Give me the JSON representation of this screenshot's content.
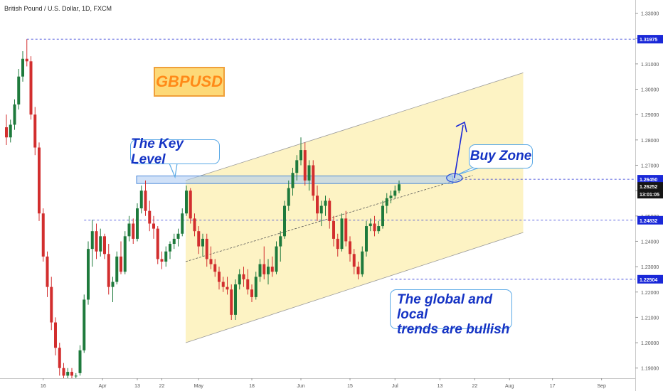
{
  "symbol_title": "British Pound / U.S. Dollar, 1D, FXCM",
  "instrument_badge": "GBPUSD",
  "annotations": {
    "key_level": "The Key Level",
    "buy_zone": "Buy Zone",
    "trend_note_line1": "The global and local",
    "trend_note_line2": "trends are bullish"
  },
  "colors": {
    "bull_candle": "#1e7a3c",
    "bear_candle": "#d22e2e",
    "channel_fill": "#fdf3c4",
    "level_line": "#2a36d6",
    "callout_text": "#1533c4",
    "price_tag_blue": "#1a28d8",
    "price_tag_dark": "#151515"
  },
  "chart_data": {
    "type": "candlestick",
    "title": "British Pound / U.S. Dollar, 1D, FXCM",
    "ylim": [
      1.186,
      1.3352
    ],
    "y_ticks": [
      "1.33000",
      "1.32000",
      "1.31000",
      "1.30000",
      "1.29000",
      "1.28000",
      "1.27000",
      "1.26000",
      "1.25000",
      "1.24000",
      "1.23000",
      "1.22000",
      "1.21000",
      "1.20000",
      "1.19000"
    ],
    "x_ticks": [
      "16",
      "Apr",
      "13",
      "22",
      "May",
      "18",
      "Jun",
      "15",
      "Jul",
      "13",
      "22",
      "Aug",
      "17",
      "Sep"
    ],
    "horizontal_levels": [
      1.31975,
      1.2645,
      1.24832,
      1.22504
    ],
    "price_labels": [
      {
        "value": "1.31975",
        "style": "blue"
      },
      {
        "value": "1.26450",
        "style": "blue"
      },
      {
        "value": "1.26252",
        "style": "dark"
      },
      {
        "value": "13:01:05",
        "style": "dark"
      },
      {
        "value": "1.24832",
        "style": "blue"
      },
      {
        "value": "1.22504",
        "style": "blue"
      }
    ],
    "ohlc": [
      [
        1.285,
        1.29,
        1.278,
        1.281
      ],
      [
        1.281,
        1.288,
        1.279,
        1.286
      ],
      [
        1.286,
        1.296,
        1.284,
        1.294
      ],
      [
        1.294,
        1.308,
        1.292,
        1.305
      ],
      [
        1.305,
        1.315,
        1.303,
        1.312
      ],
      [
        1.312,
        1.3197,
        1.309,
        1.311
      ],
      [
        1.311,
        1.313,
        1.288,
        1.29
      ],
      [
        1.29,
        1.293,
        1.274,
        1.277
      ],
      [
        1.277,
        1.279,
        1.248,
        1.251
      ],
      [
        1.251,
        1.253,
        1.232,
        1.234
      ],
      [
        1.234,
        1.236,
        1.218,
        1.222
      ],
      [
        1.222,
        1.226,
        1.205,
        1.208
      ],
      [
        1.208,
        1.21,
        1.195,
        1.198
      ],
      [
        1.198,
        1.2,
        1.187,
        1.19
      ],
      [
        1.19,
        1.192,
        1.186,
        1.187
      ],
      [
        1.187,
        1.19,
        1.186,
        1.1885
      ],
      [
        1.1885,
        1.19,
        1.186,
        1.187
      ],
      [
        1.187,
        1.188,
        1.186,
        1.187
      ],
      [
        1.188,
        1.199,
        1.187,
        1.197
      ],
      [
        1.197,
        1.219,
        1.196,
        1.217
      ],
      [
        1.217,
        1.24,
        1.215,
        1.237
      ],
      [
        1.237,
        1.2485,
        1.23,
        1.244
      ],
      [
        1.244,
        1.247,
        1.233,
        1.236
      ],
      [
        1.236,
        1.245,
        1.234,
        1.242
      ],
      [
        1.242,
        1.243,
        1.233,
        1.235
      ],
      [
        1.235,
        1.239,
        1.219,
        1.222
      ],
      [
        1.222,
        1.226,
        1.216,
        1.224
      ],
      [
        1.224,
        1.236,
        1.223,
        1.234
      ],
      [
        1.234,
        1.24,
        1.227,
        1.228
      ],
      [
        1.228,
        1.244,
        1.227,
        1.242
      ],
      [
        1.242,
        1.25,
        1.24,
        1.247
      ],
      [
        1.247,
        1.249,
        1.239,
        1.241
      ],
      [
        1.241,
        1.255,
        1.24,
        1.253
      ],
      [
        1.253,
        1.262,
        1.251,
        1.26
      ],
      [
        1.26,
        1.264,
        1.25,
        1.252
      ],
      [
        1.252,
        1.256,
        1.244,
        1.247
      ],
      [
        1.247,
        1.25,
        1.241,
        1.245
      ],
      [
        1.245,
        1.246,
        1.231,
        1.233
      ],
      [
        1.233,
        1.236,
        1.229,
        1.232
      ],
      [
        1.232,
        1.238,
        1.23,
        1.236
      ],
      [
        1.236,
        1.24,
        1.233,
        1.239
      ],
      [
        1.239,
        1.243,
        1.237,
        1.241
      ],
      [
        1.241,
        1.245,
        1.238,
        1.243
      ],
      [
        1.243,
        1.253,
        1.242,
        1.251
      ],
      [
        1.251,
        1.262,
        1.25,
        1.26
      ],
      [
        1.26,
        1.261,
        1.247,
        1.249
      ],
      [
        1.249,
        1.251,
        1.242,
        1.244
      ],
      [
        1.244,
        1.246,
        1.235,
        1.238
      ],
      [
        1.238,
        1.243,
        1.234,
        1.241
      ],
      [
        1.241,
        1.243,
        1.23,
        1.233
      ],
      [
        1.233,
        1.238,
        1.229,
        1.231
      ],
      [
        1.231,
        1.233,
        1.226,
        1.228
      ],
      [
        1.228,
        1.23,
        1.221,
        1.224
      ],
      [
        1.224,
        1.226,
        1.22,
        1.222
      ],
      [
        1.222,
        1.226,
        1.219,
        1.221
      ],
      [
        1.221,
        1.223,
        1.209,
        1.211
      ],
      [
        1.211,
        1.225,
        1.209,
        1.223
      ],
      [
        1.223,
        1.229,
        1.221,
        1.227
      ],
      [
        1.227,
        1.23,
        1.222,
        1.225
      ],
      [
        1.225,
        1.229,
        1.219,
        1.221
      ],
      [
        1.221,
        1.223,
        1.216,
        1.218
      ],
      [
        1.218,
        1.228,
        1.217,
        1.226
      ],
      [
        1.226,
        1.233,
        1.224,
        1.231
      ],
      [
        1.231,
        1.238,
        1.225,
        1.227
      ],
      [
        1.227,
        1.233,
        1.223,
        1.23
      ],
      [
        1.23,
        1.234,
        1.226,
        1.228
      ],
      [
        1.228,
        1.24,
        1.227,
        1.238
      ],
      [
        1.238,
        1.244,
        1.232,
        1.242
      ],
      [
        1.242,
        1.256,
        1.241,
        1.254
      ],
      [
        1.254,
        1.264,
        1.252,
        1.261
      ],
      [
        1.261,
        1.269,
        1.258,
        1.267
      ],
      [
        1.267,
        1.274,
        1.264,
        1.272
      ],
      [
        1.272,
        1.281,
        1.27,
        1.276
      ],
      [
        1.276,
        1.279,
        1.262,
        1.264
      ],
      [
        1.264,
        1.272,
        1.26,
        1.27
      ],
      [
        1.27,
        1.272,
        1.256,
        1.258
      ],
      [
        1.258,
        1.262,
        1.248,
        1.251
      ],
      [
        1.251,
        1.256,
        1.246,
        1.254
      ],
      [
        1.254,
        1.258,
        1.25,
        1.256
      ],
      [
        1.256,
        1.257,
        1.245,
        1.248
      ],
      [
        1.248,
        1.25,
        1.238,
        1.241
      ],
      [
        1.241,
        1.243,
        1.234,
        1.237
      ],
      [
        1.237,
        1.251,
        1.236,
        1.249
      ],
      [
        1.249,
        1.252,
        1.238,
        1.24
      ],
      [
        1.24,
        1.242,
        1.232,
        1.235
      ],
      [
        1.235,
        1.237,
        1.227,
        1.23
      ],
      [
        1.23,
        1.232,
        1.225,
        1.227
      ],
      [
        1.227,
        1.238,
        1.226,
        1.236
      ],
      [
        1.236,
        1.248,
        1.234,
        1.246
      ],
      [
        1.246,
        1.249,
        1.244,
        1.247
      ],
      [
        1.247,
        1.25,
        1.242,
        1.244
      ],
      [
        1.244,
        1.248,
        1.243,
        1.246
      ],
      [
        1.246,
        1.256,
        1.245,
        1.254
      ],
      [
        1.254,
        1.259,
        1.251,
        1.257
      ],
      [
        1.257,
        1.26,
        1.255,
        1.258
      ],
      [
        1.258,
        1.262,
        1.257,
        1.26
      ],
      [
        1.26,
        1.264,
        1.259,
        1.2625
      ]
    ],
    "x_range": [
      -1,
      132
    ]
  }
}
